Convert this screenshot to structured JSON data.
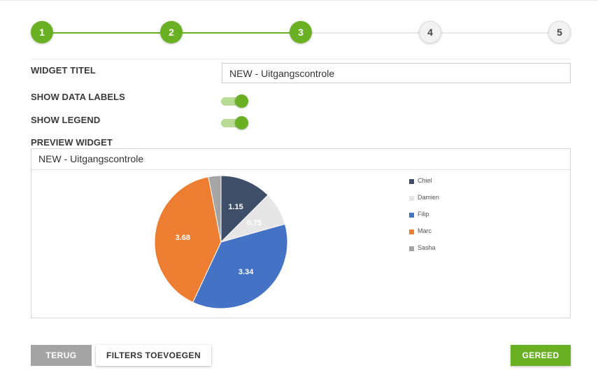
{
  "stepper": {
    "steps": [
      {
        "number": "1",
        "state": "active"
      },
      {
        "number": "2",
        "state": "active"
      },
      {
        "number": "3",
        "state": "active"
      },
      {
        "number": "4",
        "state": "inactive"
      },
      {
        "number": "5",
        "state": "inactive"
      }
    ],
    "active_color": "#6ab023",
    "inactive_color": "#f2f2f2"
  },
  "form": {
    "widget_title_label": "WIDGET TITEL",
    "widget_title_value": "NEW - Uitgangscontrole",
    "show_data_labels_label": "SHOW DATA LABELS",
    "show_data_labels_on": true,
    "show_legend_label": "SHOW LEGEND",
    "show_legend_on": true,
    "preview_label": "PREVIEW WIDGET"
  },
  "preview": {
    "title": "NEW - Uitgangscontrole"
  },
  "chart_data": {
    "type": "pie",
    "title": "",
    "data_labels_shown": true,
    "legend_placement": "right",
    "slices": [
      {
        "label": "Chiel",
        "value": 1.15,
        "color": "#3f4f69",
        "label_color": "#ffffff"
      },
      {
        "label": "Damien",
        "value": 0.75,
        "color": "#e6e6e6",
        "label_color": "#ffffff"
      },
      {
        "label": "Filip",
        "value": 3.34,
        "color": "#4472c4",
        "label_color": "#ffffff"
      },
      {
        "label": "Marc",
        "value": 3.68,
        "color": "#ed7d31",
        "label_color": "#ffffff"
      },
      {
        "label": "Sasha",
        "value": 0.28,
        "color": "#a5a5a5",
        "label_color": "#ffffff"
      }
    ]
  },
  "buttons": {
    "back_label": "TERUG",
    "filters_label": "FILTERS TOEVOEGEN",
    "done_label": "GEREED"
  }
}
